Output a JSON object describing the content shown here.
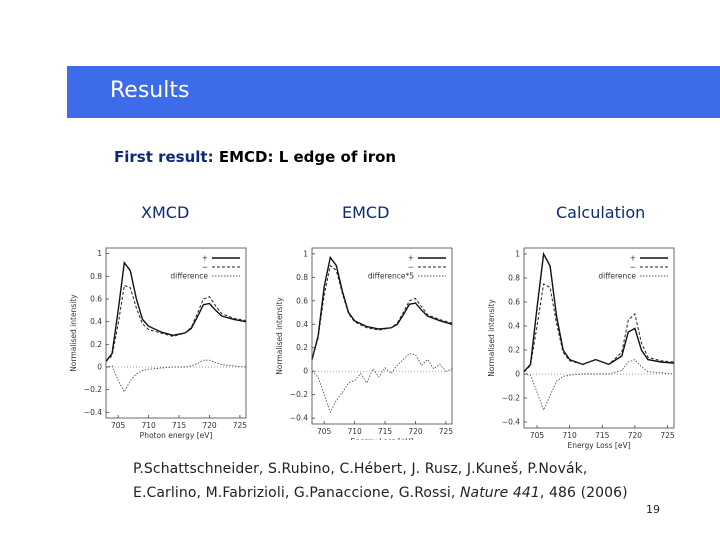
{
  "header": {
    "title": "Results"
  },
  "subtitle": {
    "accent": "First result:",
    "rest": "EMCD:  L edge of iron"
  },
  "columns": [
    "XMCD",
    "EMCD",
    "Calculation"
  ],
  "chart_data": [
    {
      "type": "line",
      "title": "XMCD",
      "xlabel": "Photon energy [eV]",
      "ylabel": "Normalised intensity",
      "xlim": [
        703,
        726
      ],
      "ylim": [
        -0.45,
        1.05
      ],
      "xticks": [
        "705",
        "710",
        "715",
        "720",
        "725"
      ],
      "yticks": [
        "1",
        "0.8",
        "0.6",
        "0.4",
        "0.2",
        "0",
        "−0.2",
        "−0.4"
      ],
      "legend": [
        "+",
        "−",
        "difference"
      ],
      "series": [
        {
          "name": "+",
          "x": [
            703,
            704,
            705,
            706,
            707,
            708,
            709,
            710,
            712,
            714,
            716,
            717,
            718,
            719,
            720,
            721,
            722,
            724,
            726
          ],
          "y": [
            0.05,
            0.12,
            0.5,
            0.92,
            0.85,
            0.6,
            0.42,
            0.36,
            0.31,
            0.28,
            0.3,
            0.34,
            0.44,
            0.55,
            0.56,
            0.5,
            0.45,
            0.42,
            0.4
          ]
        },
        {
          "name": "−",
          "x": [
            703,
            704,
            705,
            706,
            707,
            708,
            709,
            710,
            712,
            714,
            716,
            717,
            718,
            719,
            720,
            721,
            722,
            724,
            726
          ],
          "y": [
            0.05,
            0.1,
            0.38,
            0.72,
            0.7,
            0.52,
            0.38,
            0.33,
            0.3,
            0.27,
            0.3,
            0.35,
            0.47,
            0.6,
            0.62,
            0.54,
            0.47,
            0.43,
            0.41
          ]
        },
        {
          "name": "difference",
          "x": [
            703,
            704,
            705,
            706,
            707,
            708,
            709,
            710,
            712,
            714,
            716,
            717,
            718,
            719,
            720,
            721,
            722,
            724,
            726
          ],
          "y": [
            0,
            0.01,
            -0.12,
            -0.22,
            -0.12,
            -0.06,
            -0.03,
            -0.02,
            -0.01,
            0,
            0,
            0.01,
            0.03,
            0.06,
            0.06,
            0.04,
            0.02,
            0.01,
            0
          ]
        }
      ]
    },
    {
      "type": "line",
      "title": "EMCD",
      "xlabel": "Energy Loss [eV]",
      "ylabel": "Normalised intensity",
      "xlim": [
        703,
        726
      ],
      "ylim": [
        -0.45,
        1.05
      ],
      "xticks": [
        "705",
        "710",
        "715",
        "720",
        "725"
      ],
      "yticks": [
        "1",
        "0.8",
        "0.6",
        "0.4",
        "0.2",
        "0",
        "−0.2",
        "−0.4"
      ],
      "legend": [
        "+",
        "−",
        "difference*5"
      ],
      "series": [
        {
          "name": "+",
          "x": [
            703,
            704,
            705,
            706,
            707,
            708,
            709,
            710,
            712,
            714,
            716,
            717,
            718,
            719,
            720,
            721,
            722,
            724,
            726
          ],
          "y": [
            0.1,
            0.3,
            0.72,
            0.97,
            0.9,
            0.68,
            0.5,
            0.43,
            0.38,
            0.36,
            0.37,
            0.4,
            0.48,
            0.57,
            0.58,
            0.52,
            0.47,
            0.43,
            0.4
          ]
        },
        {
          "name": "−",
          "x": [
            703,
            704,
            705,
            706,
            707,
            708,
            709,
            710,
            712,
            714,
            716,
            717,
            718,
            719,
            720,
            721,
            722,
            724,
            726
          ],
          "y": [
            0.1,
            0.28,
            0.65,
            0.9,
            0.86,
            0.66,
            0.49,
            0.42,
            0.37,
            0.35,
            0.37,
            0.41,
            0.5,
            0.6,
            0.62,
            0.55,
            0.48,
            0.44,
            0.41
          ]
        },
        {
          "name": "difference*5",
          "x": [
            703,
            704,
            705,
            706,
            707,
            708,
            709,
            710,
            711,
            712,
            713,
            714,
            715,
            716,
            717,
            718,
            719,
            720,
            721,
            722,
            723,
            724,
            725,
            726
          ],
          "y": [
            0,
            -0.05,
            -0.2,
            -0.35,
            -0.25,
            -0.18,
            -0.1,
            -0.08,
            -0.02,
            -0.1,
            0.02,
            -0.05,
            0.03,
            -0.02,
            0.05,
            0.1,
            0.15,
            0.14,
            0.05,
            0.1,
            0.02,
            0.06,
            0.0,
            0.02
          ]
        }
      ]
    },
    {
      "type": "line",
      "title": "Calculation",
      "xlabel": "Energy Loss [eV]",
      "ylabel": "Normalised intensity",
      "xlim": [
        703,
        726
      ],
      "ylim": [
        -0.45,
        1.05
      ],
      "xticks": [
        "705",
        "710",
        "715",
        "720",
        "725"
      ],
      "yticks": [
        "1",
        "0.8",
        "0.6",
        "0.4",
        "0.2",
        "0",
        "−0.2",
        "−0.4"
      ],
      "legend": [
        "+",
        "−",
        "difference"
      ],
      "series": [
        {
          "name": "+",
          "x": [
            703,
            704,
            705,
            706,
            707,
            708,
            709,
            710,
            712,
            713,
            714,
            715,
            716,
            718,
            719,
            720,
            721,
            722,
            724,
            726
          ],
          "y": [
            0.02,
            0.08,
            0.55,
            1.0,
            0.9,
            0.48,
            0.2,
            0.12,
            0.08,
            0.1,
            0.12,
            0.1,
            0.08,
            0.15,
            0.35,
            0.38,
            0.2,
            0.12,
            0.1,
            0.09
          ]
        },
        {
          "name": "−",
          "x": [
            703,
            704,
            705,
            706,
            707,
            708,
            709,
            710,
            712,
            713,
            714,
            715,
            716,
            718,
            719,
            720,
            721,
            722,
            724,
            726
          ],
          "y": [
            0.02,
            0.07,
            0.4,
            0.75,
            0.72,
            0.42,
            0.18,
            0.11,
            0.08,
            0.1,
            0.12,
            0.1,
            0.08,
            0.18,
            0.45,
            0.5,
            0.26,
            0.14,
            0.11,
            0.1
          ]
        },
        {
          "name": "difference",
          "x": [
            703,
            704,
            705,
            706,
            707,
            708,
            709,
            710,
            712,
            714,
            716,
            718,
            719,
            720,
            721,
            722,
            724,
            726
          ],
          "y": [
            0,
            -0.01,
            -0.15,
            -0.3,
            -0.18,
            -0.06,
            -0.02,
            -0.01,
            0,
            0,
            0,
            0.03,
            0.1,
            0.12,
            0.06,
            0.02,
            0.01,
            0
          ]
        }
      ]
    }
  ],
  "reference": {
    "line1": "P.Schattschneider, S.Rubino, C.Hébert, J. Rusz, J.Kuneš, P.Novák,",
    "line2_prefix": "E.Carlino, M.Fabrizioli, G.Panaccione, G.Rossi, ",
    "journal": "Nature 441",
    "line2_suffix": ", 486 (2006)"
  },
  "page_number": "19"
}
